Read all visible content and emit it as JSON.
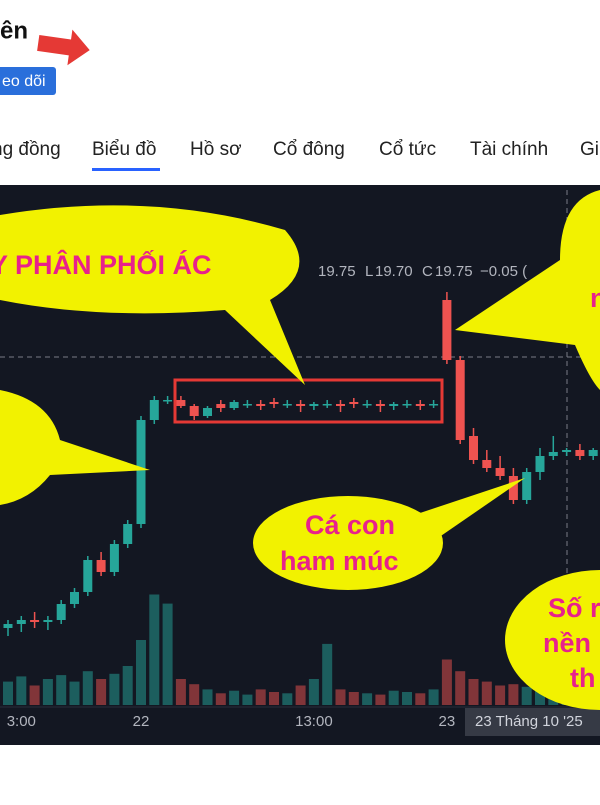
{
  "header": {
    "title": "ên",
    "follow_button": "eo dõi"
  },
  "tabs": [
    "ng đồng",
    "Biểu đồ",
    "Hồ sơ",
    "Cổ đông",
    "Cổ tức",
    "Tài chính",
    "Gi"
  ],
  "ohlc_readout": [
    "19.75",
    "L",
    "19.70",
    "C",
    "19.75",
    "−0.05 ("
  ],
  "crosshair_label": "23 Tháng 10 '25",
  "annotations": [
    "Y PHÂN PHỐI ÁC",
    "n",
    "Cá con",
    "ham múc",
    "Số r",
    "nền",
    "th"
  ],
  "chart_data": {
    "type": "candlestick",
    "categories": [
      null,
      "3:00",
      null,
      null,
      null,
      null,
      null,
      null,
      null,
      null,
      "22",
      null,
      null,
      null,
      null,
      null,
      null,
      null,
      null,
      null,
      null,
      null,
      null,
      "13:00",
      null,
      null,
      null,
      null,
      null,
      null,
      null,
      null,
      null,
      "23",
      null,
      null,
      null,
      null,
      null,
      null,
      null,
      null,
      null,
      null,
      null
    ],
    "open": [
      18.66,
      18.68,
      18.7,
      18.69,
      18.7,
      18.78,
      18.84,
      19.0,
      18.94,
      19.08,
      19.18,
      19.7,
      19.8,
      19.8,
      19.77,
      19.72,
      19.78,
      19.76,
      19.78,
      19.78,
      19.79,
      19.78,
      19.78,
      19.77,
      19.78,
      19.78,
      19.79,
      19.78,
      19.78,
      19.77,
      19.78,
      19.78,
      19.78,
      20.3,
      20.0,
      19.62,
      19.5,
      19.46,
      19.42,
      19.3,
      19.44,
      19.52,
      19.54,
      19.55,
      19.52
    ],
    "high": [
      18.7,
      18.72,
      18.74,
      18.72,
      18.8,
      18.86,
      19.02,
      19.04,
      19.1,
      19.2,
      19.72,
      19.82,
      19.82,
      19.82,
      19.78,
      19.77,
      19.8,
      19.8,
      19.8,
      19.8,
      19.81,
      19.8,
      19.8,
      19.79,
      19.8,
      19.8,
      19.81,
      19.8,
      19.8,
      19.79,
      19.8,
      19.8,
      19.8,
      20.34,
      20.02,
      19.66,
      19.55,
      19.52,
      19.46,
      19.46,
      19.56,
      19.62,
      19.56,
      19.58,
      19.56
    ],
    "low": [
      18.62,
      18.64,
      18.66,
      18.65,
      18.68,
      18.76,
      18.82,
      18.92,
      18.92,
      19.06,
      19.16,
      19.68,
      19.78,
      19.76,
      19.7,
      19.71,
      19.74,
      19.75,
      19.76,
      19.75,
      19.76,
      19.76,
      19.74,
      19.75,
      19.76,
      19.74,
      19.76,
      19.76,
      19.74,
      19.75,
      19.76,
      19.75,
      19.76,
      19.98,
      19.58,
      19.48,
      19.44,
      19.4,
      19.28,
      19.28,
      19.4,
      19.5,
      19.52,
      19.5,
      19.5
    ],
    "close": [
      18.68,
      18.7,
      18.69,
      18.7,
      18.78,
      18.84,
      19.0,
      18.94,
      19.08,
      19.18,
      19.7,
      19.8,
      19.8,
      19.77,
      19.72,
      19.76,
      19.76,
      19.79,
      19.78,
      19.77,
      19.78,
      19.78,
      19.77,
      19.78,
      19.78,
      19.77,
      19.78,
      19.78,
      19.77,
      19.78,
      19.78,
      19.77,
      19.78,
      20.0,
      19.6,
      19.5,
      19.46,
      19.42,
      19.3,
      19.44,
      19.52,
      19.54,
      19.55,
      19.52,
      19.55
    ],
    "volume": [
      180000,
      220000,
      150000,
      200000,
      230000,
      180000,
      260000,
      200000,
      240000,
      300000,
      500000,
      850000,
      780000,
      200000,
      160000,
      120000,
      90000,
      110000,
      80000,
      120000,
      100000,
      90000,
      150000,
      200000,
      470000,
      120000,
      100000,
      90000,
      80000,
      110000,
      100000,
      90000,
      120000,
      350000,
      260000,
      200000,
      180000,
      150000,
      160000,
      140000,
      200000,
      180000,
      150000,
      120000,
      130000
    ],
    "ylim": [
      18.2,
      20.8
    ],
    "vlim": [
      0,
      1000000
    ],
    "up_color": "#26a69a",
    "down_color": "#ef5350"
  }
}
